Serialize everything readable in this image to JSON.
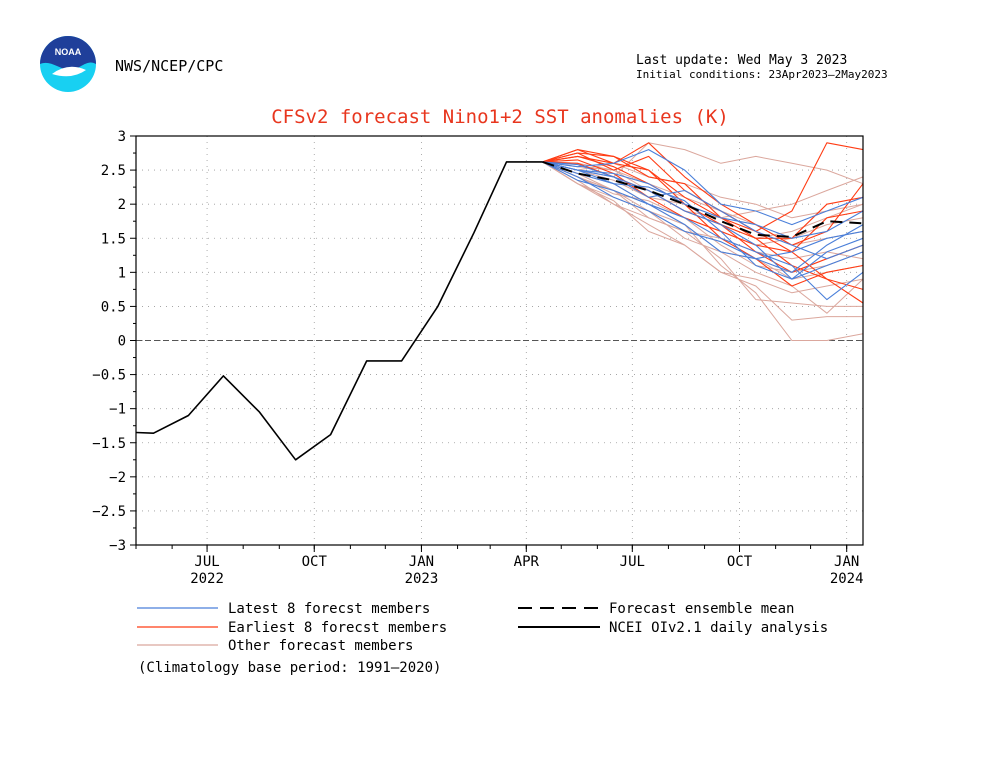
{
  "header": {
    "org": "NWS/NCEP/CPC",
    "logo_text": "NOAA",
    "last_update": "Last update: Wed May 3 2023",
    "initial_conditions": "Initial conditions: 23Apr2023–2May2023"
  },
  "colors": {
    "latest": "#4a7fd9",
    "earliest": "#ff3c14",
    "other": "#dba79d",
    "mean": "#000000",
    "analysis": "#000000",
    "title": "#e8361e",
    "logo_blue": "#1f3f9a",
    "logo_cyan": "#18d0f2"
  },
  "chart_data": {
    "type": "line",
    "title": "CFSv2 forecast Nino1+2 SST anomalies (K)",
    "ylim": [
      -3,
      3
    ],
    "yticks": [
      "3",
      "2.5",
      "2",
      "1.5",
      "1",
      "0.5",
      "0",
      "−0.5",
      "−1",
      "−1.5",
      "−2",
      "−2.5",
      "−3"
    ],
    "ytick_values": [
      3,
      2.5,
      2,
      1.5,
      1,
      0.5,
      0,
      -0.5,
      -1,
      -1.5,
      -2,
      -2.5,
      -3
    ],
    "x_range": [
      "2022-05-01",
      "2024-01-15"
    ],
    "xticks": [
      {
        "month": "JUL",
        "year": "2022",
        "date": "2022-07-01"
      },
      {
        "month": "OCT",
        "year": "",
        "date": "2022-10-01"
      },
      {
        "month": "JAN",
        "year": "2023",
        "date": "2023-01-01"
      },
      {
        "month": "APR",
        "year": "",
        "date": "2023-04-01"
      },
      {
        "month": "JUL",
        "year": "",
        "date": "2023-07-01"
      },
      {
        "month": "OCT",
        "year": "",
        "date": "2023-10-01"
      },
      {
        "month": "JAN",
        "year": "2024",
        "date": "2024-01-01"
      }
    ],
    "grid": true,
    "analysis": {
      "name": "NCEI OIv2.1 daily analysis",
      "x": [
        "2022-05-01",
        "2022-05-16",
        "2022-06-15",
        "2022-07-15",
        "2022-08-15",
        "2022-09-15",
        "2022-10-15",
        "2022-11-15",
        "2022-12-15",
        "2023-01-15",
        "2023-02-15",
        "2023-03-15",
        "2023-04-15"
      ],
      "y": [
        -1.35,
        -1.36,
        -1.1,
        -0.52,
        -1.05,
        -1.75,
        -1.38,
        -0.3,
        -0.3,
        0.5,
        1.58,
        2.62,
        2.62
      ]
    },
    "forecast_x": [
      "2023-04-15",
      "2023-05-15",
      "2023-06-15",
      "2023-07-15",
      "2023-08-15",
      "2023-09-15",
      "2023-10-15",
      "2023-11-15",
      "2023-12-15",
      "2024-01-15"
    ],
    "ensemble_mean": {
      "name": "Forecast ensemble mean",
      "y": [
        2.62,
        2.45,
        2.35,
        2.2,
        2.0,
        1.75,
        1.55,
        1.52,
        1.75,
        1.72
      ]
    },
    "latest_members": {
      "name": "Latest 8 forecst members",
      "series": [
        [
          2.62,
          2.5,
          2.4,
          2.2,
          1.9,
          1.7,
          1.4,
          0.9,
          1.1,
          1.3
        ],
        [
          2.62,
          2.55,
          2.6,
          2.8,
          2.5,
          2.0,
          1.9,
          1.7,
          1.9,
          2.1
        ],
        [
          2.62,
          2.45,
          2.3,
          2.0,
          1.8,
          1.5,
          1.3,
          1.1,
          0.6,
          1.0
        ],
        [
          2.62,
          2.4,
          2.1,
          1.9,
          1.6,
          1.45,
          1.2,
          1.0,
          1.4,
          1.7
        ],
        [
          2.62,
          2.5,
          2.45,
          2.3,
          2.0,
          1.8,
          1.7,
          1.5,
          1.6,
          1.9
        ],
        [
          2.62,
          2.58,
          2.4,
          2.1,
          2.2,
          1.9,
          1.6,
          1.4,
          1.2,
          1.4
        ],
        [
          2.62,
          2.35,
          2.2,
          2.0,
          1.7,
          1.3,
          1.2,
          1.3,
          1.5,
          1.6
        ],
        [
          2.62,
          2.5,
          2.3,
          2.25,
          2.05,
          1.6,
          1.1,
          0.9,
          1.3,
          1.5
        ]
      ]
    },
    "earliest_members": {
      "name": "Earliest 8 forecst members",
      "series": [
        [
          2.62,
          2.75,
          2.7,
          2.5,
          2.1,
          1.8,
          1.6,
          1.9,
          2.9,
          2.8
        ],
        [
          2.62,
          2.7,
          2.55,
          2.3,
          2.0,
          1.5,
          1.2,
          0.8,
          1.0,
          1.1
        ],
        [
          2.62,
          2.8,
          2.6,
          2.9,
          2.4,
          2.0,
          1.7,
          1.4,
          1.6,
          2.3
        ],
        [
          2.62,
          2.6,
          2.4,
          2.2,
          1.9,
          1.7,
          1.5,
          1.1,
          0.9,
          0.55
        ],
        [
          2.62,
          2.75,
          2.5,
          2.7,
          2.2,
          1.9,
          1.6,
          1.3,
          1.8,
          1.9
        ],
        [
          2.62,
          2.65,
          2.45,
          2.1,
          1.8,
          1.6,
          1.4,
          1.3,
          0.9,
          0.75
        ],
        [
          2.62,
          2.8,
          2.7,
          2.4,
          2.3,
          1.8,
          1.5,
          1.5,
          2.0,
          2.1
        ],
        [
          2.62,
          2.7,
          2.6,
          2.5,
          2.0,
          1.7,
          1.3,
          1.0,
          1.2,
          1.4
        ]
      ]
    },
    "other_members": {
      "name": "Other forecast members",
      "series": [
        [
          2.62,
          2.3,
          2.0,
          1.7,
          1.4,
          1.0,
          0.8,
          0.3,
          0.35,
          0.35
        ],
        [
          2.62,
          2.4,
          2.2,
          1.8,
          1.6,
          1.2,
          0.6,
          0.55,
          0.5,
          0.5
        ],
        [
          2.62,
          2.5,
          2.4,
          2.9,
          2.8,
          2.6,
          2.7,
          2.6,
          2.5,
          2.3
        ],
        [
          2.62,
          2.45,
          2.3,
          2.0,
          1.7,
          1.3,
          1.0,
          0.8,
          0.4,
          0.9
        ],
        [
          2.62,
          2.55,
          2.5,
          2.2,
          1.9,
          1.8,
          1.9,
          2.0,
          2.2,
          2.4
        ],
        [
          2.62,
          2.3,
          2.1,
          1.9,
          1.5,
          1.3,
          1.2,
          0.9,
          1.0,
          1.1
        ],
        [
          2.62,
          2.4,
          2.15,
          2.05,
          1.8,
          1.6,
          1.4,
          1.5,
          1.7,
          1.8
        ],
        [
          2.62,
          2.45,
          2.2,
          1.9,
          1.7,
          1.1,
          0.7,
          0.0,
          0.0,
          0.1
        ],
        [
          2.62,
          2.5,
          2.35,
          2.1,
          2.0,
          1.7,
          1.5,
          1.6,
          1.8,
          2.0
        ],
        [
          2.62,
          2.35,
          2.0,
          1.8,
          1.6,
          1.5,
          1.3,
          1.2,
          1.3,
          1.2
        ],
        [
          2.62,
          2.6,
          2.5,
          2.3,
          2.1,
          1.9,
          1.7,
          1.4,
          1.5,
          1.6
        ],
        [
          2.62,
          2.4,
          2.2,
          2.0,
          1.8,
          1.4,
          1.1,
          1.0,
          1.1,
          1.3
        ],
        [
          2.62,
          2.5,
          2.6,
          2.4,
          2.3,
          2.1,
          2.0,
          1.8,
          1.9,
          2.0
        ],
        [
          2.62,
          2.3,
          2.05,
          1.6,
          1.4,
          1.0,
          0.9,
          0.7,
          0.8,
          0.9
        ]
      ]
    }
  },
  "legend": {
    "latest_label": "Latest 8 forecst members",
    "earliest_label": "Earliest 8 forecst members",
    "other_label": "Other forecast members",
    "mean_label": "Forecast ensemble mean",
    "analysis_label": "NCEI OIv2.1 daily analysis",
    "climatology": "(Climatology base period: 1991–2020)"
  }
}
